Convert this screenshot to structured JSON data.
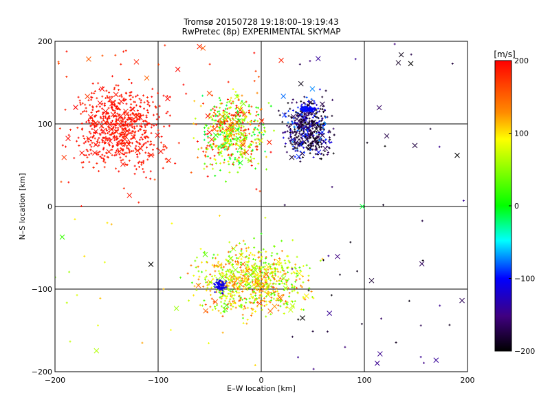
{
  "chart_data": {
    "type": "scatter",
    "title": "Tromsø 20150728 19:18:00–19:19:43",
    "subtitle": "RwPretec (8p) EXPERIMENTAL SKYMAP",
    "xlabel": "E–W location [km]",
    "ylabel": "N–S location [km]",
    "xlim": [
      -200,
      200
    ],
    "ylim": [
      -200,
      200
    ],
    "x_ticks": [
      -200,
      -100,
      0,
      100,
      200
    ],
    "y_ticks": [
      -200,
      -100,
      0,
      100,
      200
    ],
    "x_tick_labels": [
      "−200",
      "−100",
      "0",
      "100",
      "200"
    ],
    "y_tick_labels": [
      "−200",
      "−100",
      "0",
      "100",
      "200"
    ],
    "grid": true,
    "markers": [
      "dot",
      "x"
    ],
    "colorbar": {
      "label": "[m/s]",
      "range": [
        -200,
        200
      ],
      "ticks": [
        200,
        100,
        0,
        -100,
        -200
      ],
      "tick_labels": [
        "200",
        "100",
        "0",
        "−100",
        "−200"
      ],
      "placement": "right"
    },
    "clusters": [
      {
        "region": "north-west",
        "x_range": [
          -200,
          -75
        ],
        "y_range": [
          20,
          170
        ],
        "velocity": 200,
        "note": "dense red"
      },
      {
        "region": "north-central",
        "x_range": [
          -75,
          20
        ],
        "y_range": [
          20,
          160
        ],
        "velocity": 80,
        "note": "mixed orange/green"
      },
      {
        "region": "north-east",
        "x_range": [
          10,
          80
        ],
        "y_range": [
          40,
          150
        ],
        "velocity": -200,
        "note": "black with blue core near (45,118)"
      },
      {
        "region": "south",
        "x_range": [
          -90,
          70
        ],
        "y_range": [
          -150,
          -30
        ],
        "velocity": 100,
        "note": "yellow/green, blue patch near (-40,-95)"
      }
    ],
    "sample_points": [
      {
        "x": -180,
        "y": 120,
        "v": 200,
        "m": "x"
      },
      {
        "x": -160,
        "y": 90,
        "v": 200,
        "m": "dot"
      },
      {
        "x": -120,
        "y": 60,
        "v": 200,
        "m": "dot"
      },
      {
        "x": -10,
        "y": 55,
        "v": 180,
        "m": "dot"
      },
      {
        "x": 5,
        "y": 45,
        "v": 40,
        "m": "dot"
      },
      {
        "x": 45,
        "y": 118,
        "v": -100,
        "m": "dot"
      },
      {
        "x": 30,
        "y": 75,
        "v": -200,
        "m": "dot"
      },
      {
        "x": 145,
        "y": 173,
        "v": -200,
        "m": "x"
      },
      {
        "x": 190,
        "y": 62,
        "v": -200,
        "m": "x"
      },
      {
        "x": -193,
        "y": -37,
        "v": 20,
        "m": "x"
      },
      {
        "x": -107,
        "y": -70,
        "v": -200,
        "m": "x"
      },
      {
        "x": 0,
        "y": -33,
        "v": 10,
        "m": "dot"
      },
      {
        "x": 20,
        "y": -75,
        "v": 80,
        "m": "dot"
      },
      {
        "x": -60,
        "y": -85,
        "v": 100,
        "m": "dot"
      },
      {
        "x": -40,
        "y": -95,
        "v": -100,
        "m": "dot"
      },
      {
        "x": 40,
        "y": -135,
        "v": -200,
        "m": "x"
      },
      {
        "x": 120,
        "y": 73,
        "v": -200,
        "m": "dot"
      },
      {
        "x": 98,
        "y": 0,
        "v": -10,
        "m": "x"
      }
    ]
  }
}
